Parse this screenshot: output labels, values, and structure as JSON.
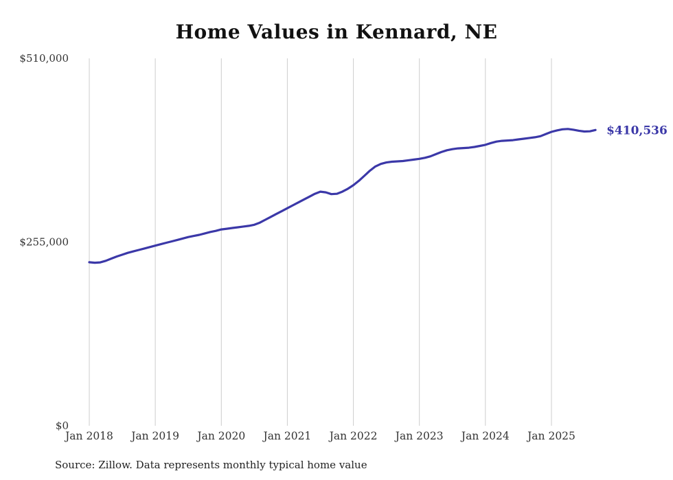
{
  "title": "Home Values in Kennard, NE",
  "end_label": "$410,536",
  "source": "Source: Zillow. Data represents monthly typical home value",
  "colors": {
    "line": "#3b38a8",
    "grid": "#cccccc",
    "axis_text": "#333333",
    "title_text": "#111111",
    "end_label_text": "#3b38a8"
  },
  "chart_data": {
    "type": "line",
    "title": "Home Values in Kennard, NE",
    "xlabel": "",
    "ylabel": "",
    "ylim": [
      0,
      510000
    ],
    "grid": "vertical-only",
    "x_tick_labels": [
      "Jan 2018",
      "Jan 2019",
      "Jan 2020",
      "Jan 2021",
      "Jan 2022",
      "Jan 2023",
      "Jan 2024",
      "Jan 2025"
    ],
    "y_ticks": [
      {
        "label": "$0",
        "value": 0
      },
      {
        "label": "$255,000",
        "value": 255000
      },
      {
        "label": "$510,000",
        "value": 510000
      }
    ],
    "series_name": "Typical home value (monthly)",
    "start_month": "Jan 2018",
    "end_month": "Sep 2025",
    "final_value": 410536,
    "values": [
      227000,
      226300,
      226800,
      229000,
      232000,
      235000,
      237500,
      240000,
      242000,
      244000,
      246000,
      248000,
      250000,
      252000,
      254000,
      256000,
      258000,
      260000,
      262000,
      263500,
      265000,
      267000,
      269000,
      270500,
      272500,
      273500,
      274500,
      275500,
      276500,
      277500,
      279000,
      282000,
      286000,
      290000,
      294000,
      298000,
      302000,
      306000,
      310000,
      314000,
      318000,
      322000,
      325000,
      324000,
      321500,
      322000,
      325000,
      329000,
      334000,
      340000,
      347000,
      354000,
      360000,
      363500,
      365500,
      366500,
      367000,
      367500,
      368500,
      369500,
      370500,
      372000,
      374000,
      377000,
      380000,
      382500,
      384000,
      385000,
      385500,
      386000,
      387000,
      388500,
      390000,
      392500,
      394500,
      395500,
      396000,
      396500,
      397500,
      398500,
      399500,
      400500,
      402000,
      405000,
      408000,
      410000,
      411500,
      412000,
      411000,
      409500,
      408500,
      408800,
      410536
    ]
  }
}
